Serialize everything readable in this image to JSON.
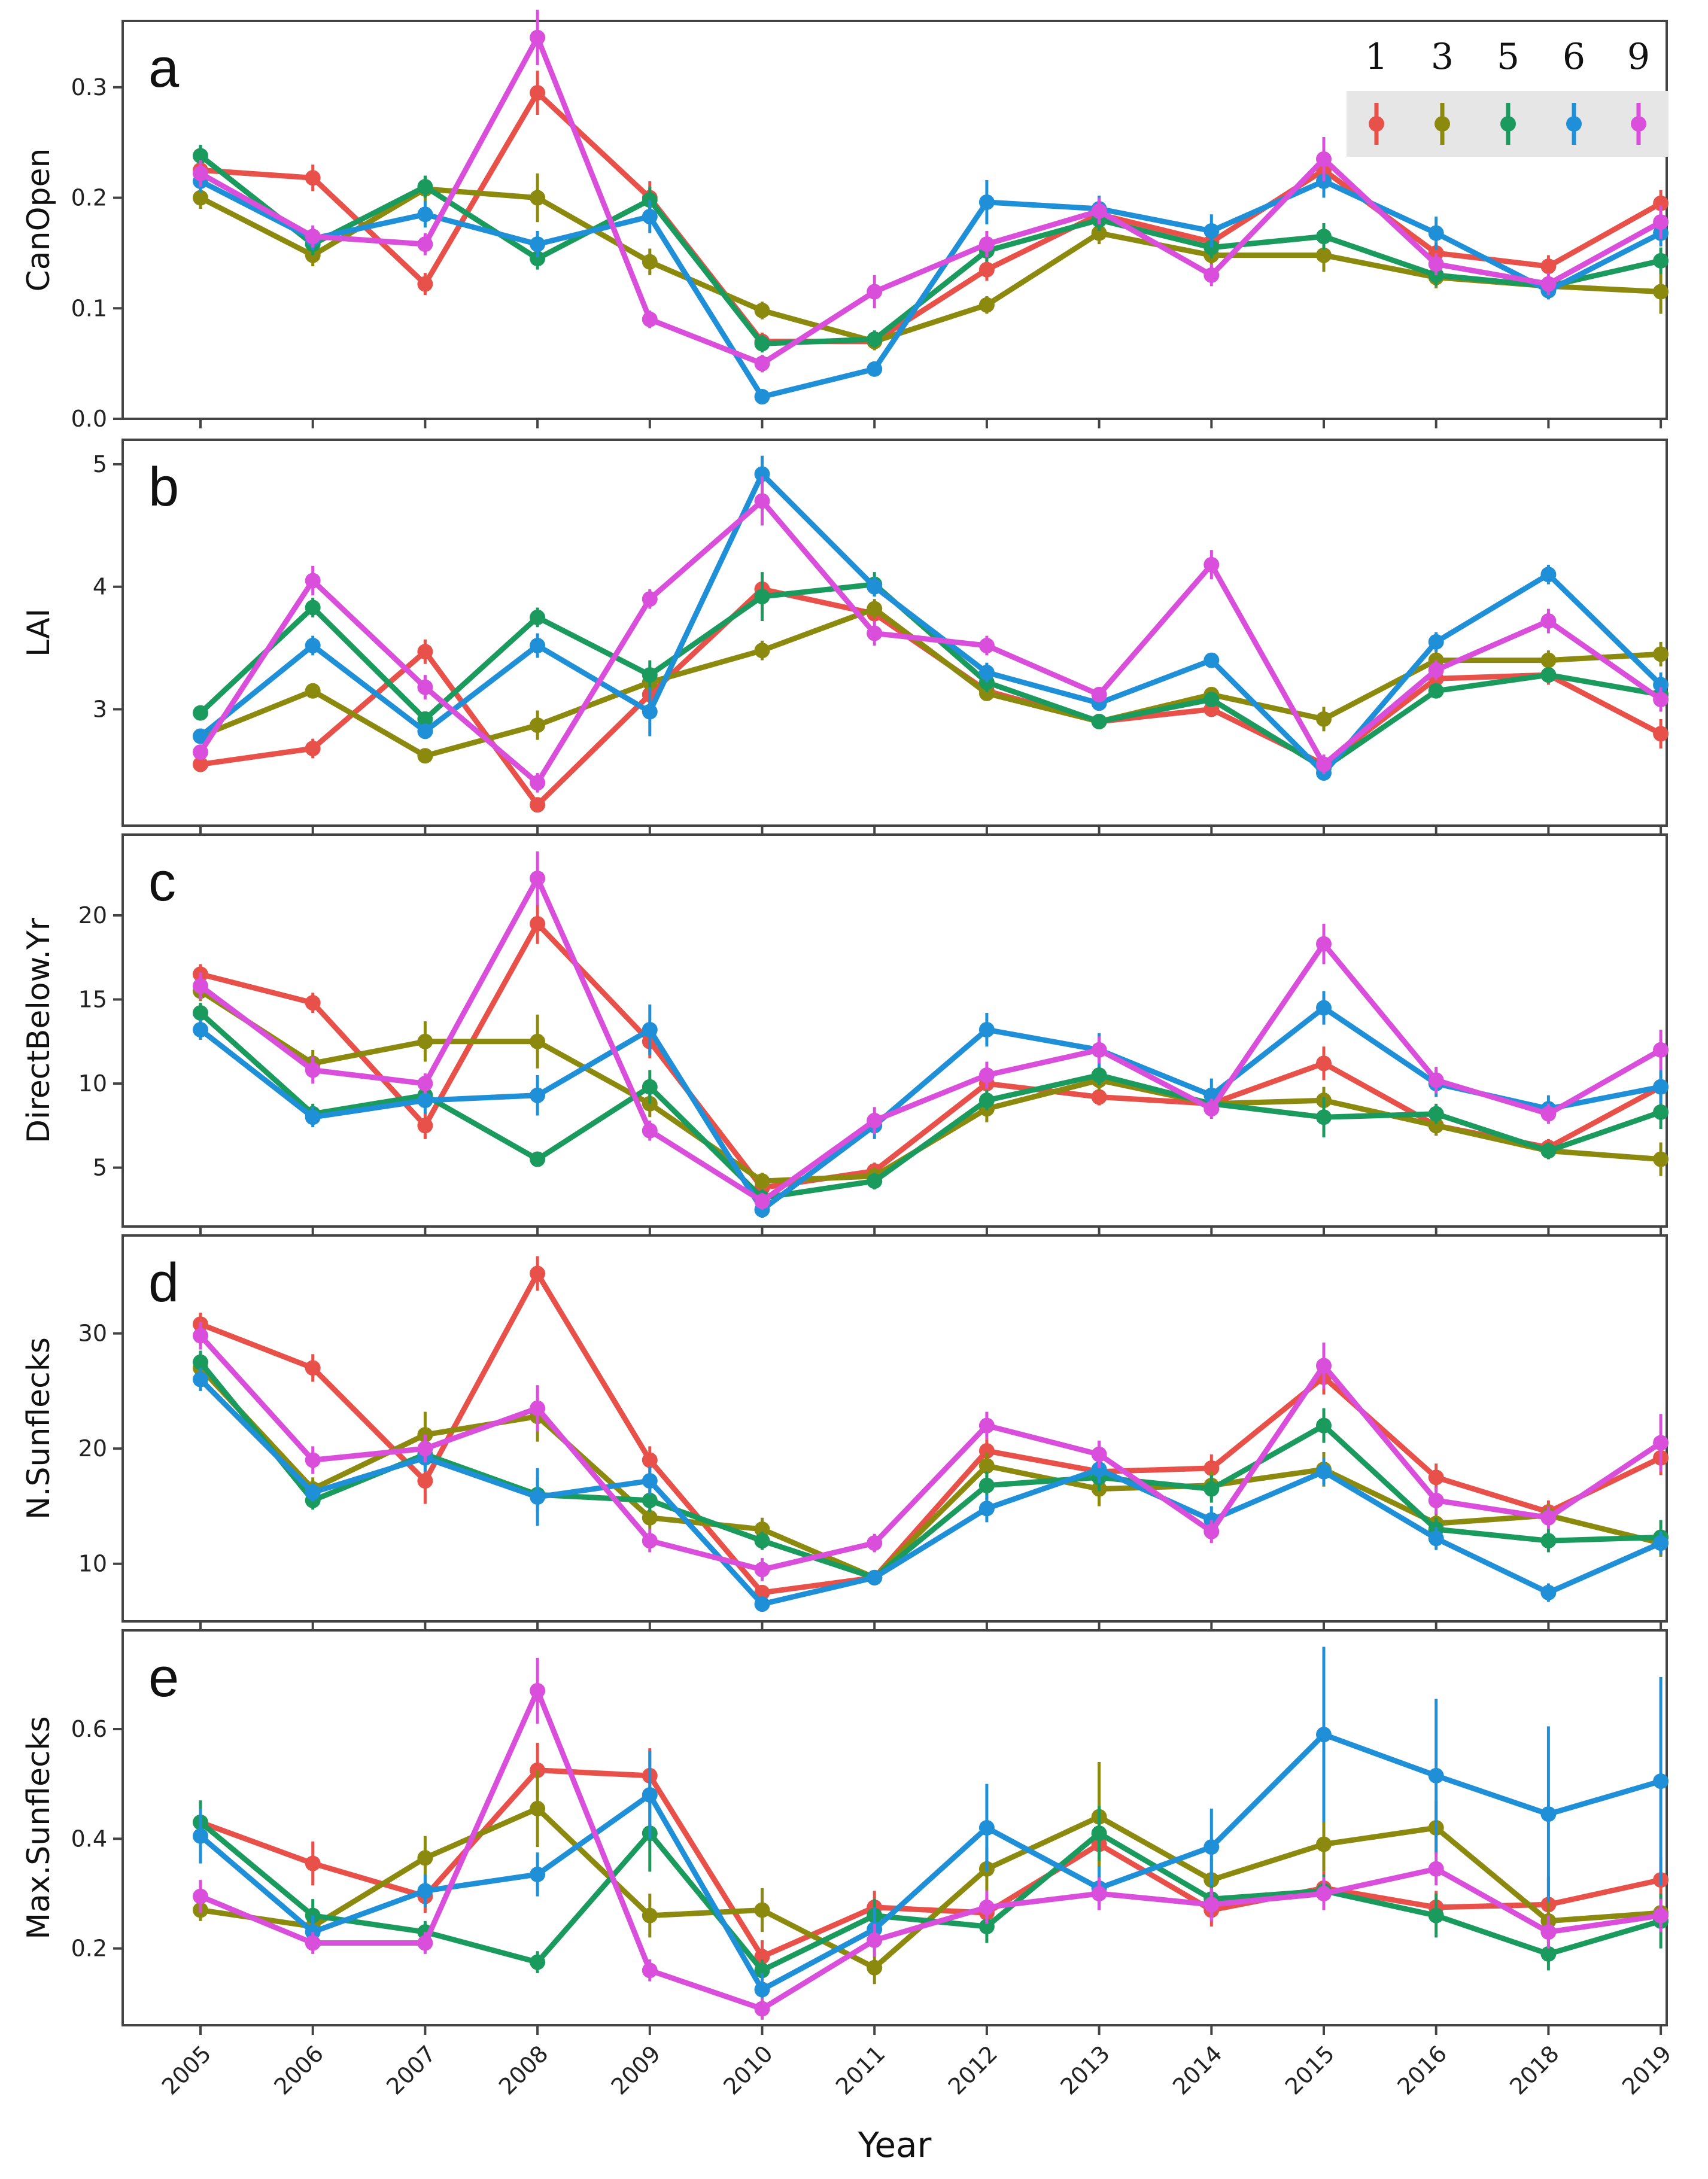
{
  "chart_data": {
    "type": "line",
    "x_axis": {
      "label": "Year",
      "categories": [
        "2005",
        "2006",
        "2007",
        "2008",
        "2009",
        "2010",
        "2011",
        "2012",
        "2013",
        "2014",
        "2015",
        "2016",
        "2018",
        "2019"
      ]
    },
    "legend": {
      "position": "top-right",
      "entries": [
        {
          "name": "1",
          "color": "#E8504A"
        },
        {
          "name": "3",
          "color": "#8C8A0E"
        },
        {
          "name": "5",
          "color": "#1B9A5E"
        },
        {
          "name": "6",
          "color": "#1F90D8"
        },
        {
          "name": "9",
          "color": "#D94FDB"
        }
      ]
    },
    "panels": [
      {
        "letter": "a",
        "ylabel": "CanOpen",
        "ylim": [
          0,
          0.36
        ],
        "yticks": [
          {
            "value": 0.0,
            "label": "0.0"
          },
          {
            "value": 0.1,
            "label": "0.1"
          },
          {
            "value": 0.2,
            "label": "0.2"
          },
          {
            "value": 0.3,
            "label": "0.3"
          }
        ],
        "series": [
          {
            "name": "1",
            "values": [
              0.225,
              0.218,
              0.122,
              0.295,
              0.2,
              0.07,
              0.07,
              0.135,
              0.185,
              0.16,
              0.225,
              0.15,
              0.138,
              0.195
            ],
            "err": [
              0.01,
              0.012,
              0.01,
              0.02,
              0.015,
              0.008,
              0.008,
              0.01,
              0.012,
              0.01,
              0.015,
              0.01,
              0.01,
              0.012
            ]
          },
          {
            "name": "3",
            "values": [
              0.2,
              0.148,
              0.208,
              0.2,
              0.142,
              0.098,
              0.07,
              0.103,
              0.168,
              0.148,
              0.148,
              0.128,
              0.12,
              0.115
            ],
            "err": [
              0.01,
              0.01,
              0.012,
              0.022,
              0.012,
              0.008,
              0.008,
              0.008,
              0.01,
              0.01,
              0.015,
              0.01,
              0.01,
              0.02
            ]
          },
          {
            "name": "5",
            "values": [
              0.238,
              0.158,
              0.21,
              0.145,
              0.198,
              0.068,
              0.072,
              0.152,
              0.18,
              0.155,
              0.165,
              0.13,
              0.12,
              0.143
            ],
            "err": [
              0.01,
              0.01,
              0.01,
              0.01,
              0.012,
              0.008,
              0.008,
              0.01,
              0.01,
              0.01,
              0.012,
              0.01,
              0.008,
              0.012
            ]
          },
          {
            "name": "6",
            "values": [
              0.215,
              0.163,
              0.185,
              0.158,
              0.183,
              0.02,
              0.045,
              0.196,
              0.19,
              0.17,
              0.215,
              0.168,
              0.116,
              0.168
            ],
            "err": [
              0.01,
              0.01,
              0.012,
              0.012,
              0.015,
              0.005,
              0.006,
              0.02,
              0.012,
              0.015,
              0.015,
              0.015,
              0.008,
              0.012
            ]
          },
          {
            "name": "9",
            "values": [
              0.222,
              0.165,
              0.158,
              0.345,
              0.09,
              0.05,
              0.115,
              0.158,
              0.188,
              0.13,
              0.235,
              0.14,
              0.122,
              0.178
            ],
            "err": [
              0.012,
              0.01,
              0.01,
              0.025,
              0.008,
              0.008,
              0.015,
              0.012,
              0.012,
              0.01,
              0.02,
              0.01,
              0.01,
              0.015
            ]
          }
        ]
      },
      {
        "letter": "b",
        "ylabel": "LAI",
        "ylim": [
          2.05,
          5.2
        ],
        "yticks": [
          {
            "value": 3,
            "label": "3"
          },
          {
            "value": 4,
            "label": "4"
          },
          {
            "value": 5,
            "label": "5"
          }
        ],
        "series": [
          {
            "name": "1",
            "values": [
              2.55,
              2.68,
              3.47,
              2.22,
              3.12,
              3.98,
              3.78,
              3.15,
              2.9,
              3.0,
              2.55,
              3.25,
              3.28,
              2.8
            ],
            "err": [
              0.06,
              0.08,
              0.1,
              0.06,
              0.1,
              0.12,
              0.08,
              0.08,
              0.06,
              0.06,
              0.06,
              0.08,
              0.08,
              0.12
            ]
          },
          {
            "name": "3",
            "values": [
              2.78,
              3.15,
              2.62,
              2.87,
              3.22,
              3.48,
              3.82,
              3.13,
              2.9,
              3.12,
              2.92,
              3.4,
              3.4,
              3.45
            ],
            "err": [
              0.06,
              0.06,
              0.06,
              0.12,
              0.1,
              0.08,
              0.08,
              0.06,
              0.06,
              0.06,
              0.1,
              0.08,
              0.08,
              0.1
            ]
          },
          {
            "name": "5",
            "values": [
              2.97,
              3.83,
              2.92,
              3.75,
              3.28,
              3.92,
              4.02,
              3.22,
              2.9,
              3.08,
              2.52,
              3.15,
              3.28,
              3.12
            ],
            "err": [
              0.06,
              0.08,
              0.06,
              0.08,
              0.12,
              0.2,
              0.1,
              0.08,
              0.06,
              0.06,
              0.06,
              0.06,
              0.06,
              0.08
            ]
          },
          {
            "name": "6",
            "values": [
              2.78,
              3.52,
              2.82,
              3.52,
              2.98,
              4.92,
              4.0,
              3.3,
              3.05,
              3.4,
              2.48,
              3.55,
              4.1,
              3.2
            ],
            "err": [
              0.06,
              0.08,
              0.06,
              0.1,
              0.2,
              0.15,
              0.08,
              0.08,
              0.06,
              0.06,
              0.06,
              0.08,
              0.08,
              0.1
            ]
          },
          {
            "name": "9",
            "values": [
              2.65,
              4.05,
              3.18,
              2.4,
              3.9,
              4.7,
              3.62,
              3.52,
              3.12,
              4.18,
              2.55,
              3.32,
              3.72,
              3.08
            ],
            "err": [
              0.06,
              0.12,
              0.1,
              0.08,
              0.08,
              0.2,
              0.1,
              0.08,
              0.06,
              0.12,
              0.08,
              0.08,
              0.1,
              0.1
            ]
          }
        ]
      },
      {
        "letter": "c",
        "ylabel": "DirectBelow.Yr",
        "ylim": [
          1.5,
          24.8
        ],
        "yticks": [
          {
            "value": 5,
            "label": "5"
          },
          {
            "value": 10,
            "label": "10"
          },
          {
            "value": 15,
            "label": "15"
          },
          {
            "value": 20,
            "label": "20"
          }
        ],
        "series": [
          {
            "name": "1",
            "values": [
              16.5,
              14.8,
              7.5,
              19.5,
              12.5,
              3.8,
              4.8,
              10.0,
              9.2,
              8.8,
              11.2,
              7.5,
              6.2,
              9.8
            ],
            "err": [
              0.6,
              0.6,
              0.8,
              1.2,
              1.0,
              0.5,
              0.5,
              0.6,
              0.5,
              0.5,
              1.0,
              0.6,
              0.5,
              0.8
            ]
          },
          {
            "name": "3",
            "values": [
              15.5,
              11.2,
              12.5,
              12.5,
              8.8,
              4.2,
              4.5,
              8.5,
              10.2,
              8.8,
              9.0,
              7.5,
              6.0,
              5.5
            ],
            "err": [
              0.6,
              0.8,
              1.2,
              1.6,
              0.8,
              0.5,
              0.5,
              0.8,
              0.6,
              0.5,
              0.8,
              0.6,
              0.5,
              1.0
            ]
          },
          {
            "name": "5",
            "values": [
              14.2,
              8.2,
              9.3,
              5.5,
              9.8,
              3.2,
              4.2,
              9.0,
              10.5,
              8.8,
              8.0,
              8.2,
              6.0,
              8.3
            ],
            "err": [
              0.6,
              0.6,
              0.6,
              0.4,
              1.0,
              0.5,
              0.5,
              0.6,
              0.6,
              0.5,
              1.2,
              0.6,
              0.5,
              1.0
            ]
          },
          {
            "name": "6",
            "values": [
              13.2,
              8.0,
              9.0,
              9.3,
              13.2,
              2.5,
              7.5,
              13.2,
              12.0,
              9.3,
              14.5,
              10.0,
              8.5,
              9.8
            ],
            "err": [
              0.6,
              0.6,
              0.8,
              1.2,
              1.5,
              0.5,
              0.8,
              1.0,
              1.0,
              1.0,
              1.0,
              0.8,
              0.8,
              1.0
            ]
          },
          {
            "name": "9",
            "values": [
              15.8,
              10.8,
              10.0,
              22.2,
              7.2,
              3.0,
              7.8,
              10.5,
              12.0,
              8.5,
              18.3,
              10.2,
              8.2,
              12.0
            ],
            "err": [
              0.8,
              0.8,
              0.6,
              1.6,
              0.6,
              0.5,
              0.8,
              0.8,
              0.8,
              0.6,
              1.2,
              0.8,
              0.6,
              1.2
            ]
          }
        ]
      },
      {
        "letter": "d",
        "ylabel": "N.Sunflecks",
        "ylim": [
          5.0,
          38.5
        ],
        "yticks": [
          {
            "value": 10,
            "label": "10"
          },
          {
            "value": 20,
            "label": "20"
          },
          {
            "value": 30,
            "label": "30"
          }
        ],
        "series": [
          {
            "name": "1",
            "values": [
              30.8,
              27.0,
              17.2,
              35.2,
              19.0,
              7.5,
              8.8,
              19.8,
              18.0,
              18.3,
              26.2,
              17.5,
              14.5,
              19.2
            ],
            "err": [
              1.0,
              1.2,
              2.0,
              1.5,
              1.2,
              0.6,
              0.6,
              1.0,
              1.0,
              1.2,
              1.5,
              1.2,
              1.0,
              1.5
            ]
          },
          {
            "name": "3",
            "values": [
              27.0,
              16.5,
              21.2,
              22.8,
              14.0,
              13.0,
              8.8,
              18.5,
              16.5,
              16.8,
              18.2,
              13.5,
              14.2,
              11.8
            ],
            "err": [
              1.0,
              1.0,
              2.0,
              2.2,
              1.0,
              1.0,
              0.6,
              1.2,
              1.5,
              1.2,
              1.5,
              1.0,
              1.0,
              1.2
            ]
          },
          {
            "name": "5",
            "values": [
              27.5,
              15.5,
              19.5,
              16.0,
              15.5,
              12.0,
              8.8,
              16.8,
              17.5,
              16.5,
              22.0,
              13.0,
              12.0,
              12.3
            ],
            "err": [
              1.0,
              0.8,
              1.2,
              1.5,
              1.0,
              0.8,
              0.6,
              1.2,
              1.2,
              1.2,
              1.5,
              1.0,
              1.0,
              1.5
            ]
          },
          {
            "name": "6",
            "values": [
              26.0,
              16.2,
              19.2,
              15.8,
              17.2,
              6.5,
              8.8,
              14.8,
              18.2,
              13.8,
              18.0,
              12.2,
              7.5,
              11.8
            ],
            "err": [
              1.0,
              0.8,
              1.2,
              2.5,
              1.2,
              0.6,
              0.6,
              1.2,
              1.2,
              1.2,
              1.2,
              1.0,
              0.8,
              1.0
            ]
          },
          {
            "name": "9",
            "values": [
              29.8,
              19.0,
              20.0,
              23.5,
              12.0,
              9.5,
              11.8,
              22.0,
              19.5,
              12.8,
              27.2,
              15.5,
              14.0,
              20.5
            ],
            "err": [
              1.2,
              1.2,
              1.2,
              2.0,
              1.0,
              1.0,
              0.8,
              1.2,
              1.2,
              1.0,
              2.0,
              1.2,
              1.0,
              2.5
            ]
          }
        ]
      },
      {
        "letter": "e",
        "ylabel": "Max.Sunflecks",
        "ylim": [
          0.06,
          0.78
        ],
        "yticks": [
          {
            "value": 0.2,
            "label": "0.2"
          },
          {
            "value": 0.4,
            "label": "0.4"
          },
          {
            "value": 0.6,
            "label": "0.6"
          }
        ],
        "series": [
          {
            "name": "1",
            "values": [
              0.43,
              0.355,
              0.295,
              0.525,
              0.515,
              0.185,
              0.275,
              0.265,
              0.39,
              0.27,
              0.31,
              0.275,
              0.28,
              0.325
            ],
            "err": [
              0.03,
              0.04,
              0.03,
              0.05,
              0.05,
              0.03,
              0.03,
              0.03,
              0.04,
              0.03,
              0.03,
              0.03,
              0.05,
              0.04
            ]
          },
          {
            "name": "3",
            "values": [
              0.27,
              0.24,
              0.365,
              0.455,
              0.26,
              0.27,
              0.165,
              0.345,
              0.44,
              0.325,
              0.39,
              0.42,
              0.25,
              0.265
            ],
            "err": [
              0.02,
              0.03,
              0.04,
              0.07,
              0.04,
              0.04,
              0.03,
              0.04,
              0.1,
              0.04,
              0.05,
              0.05,
              0.04,
              0.03
            ]
          },
          {
            "name": "5",
            "values": [
              0.43,
              0.26,
              0.23,
              0.175,
              0.41,
              0.16,
              0.26,
              0.24,
              0.41,
              0.29,
              0.305,
              0.26,
              0.19,
              0.25
            ],
            "err": [
              0.04,
              0.03,
              0.02,
              0.02,
              0.07,
              0.02,
              0.03,
              0.03,
              0.05,
              0.03,
              0.03,
              0.04,
              0.03,
              0.05
            ]
          },
          {
            "name": "6",
            "values": [
              0.405,
              0.23,
              0.305,
              0.335,
              0.48,
              0.125,
              0.235,
              0.42,
              0.31,
              0.385,
              0.59,
              0.515,
              0.445,
              0.505
            ],
            "err": [
              0.05,
              0.03,
              0.03,
              0.04,
              0.08,
              0.03,
              0.04,
              0.08,
              0.04,
              0.07,
              0.16,
              0.14,
              0.16,
              0.19
            ]
          },
          {
            "name": "9",
            "values": [
              0.295,
              0.21,
              0.21,
              0.67,
              0.16,
              0.09,
              0.215,
              0.275,
              0.3,
              0.28,
              0.3,
              0.345,
              0.23,
              0.26
            ],
            "err": [
              0.03,
              0.02,
              0.02,
              0.06,
              0.02,
              0.02,
              0.03,
              0.03,
              0.03,
              0.03,
              0.03,
              0.03,
              0.03,
              0.03
            ]
          }
        ]
      }
    ]
  }
}
